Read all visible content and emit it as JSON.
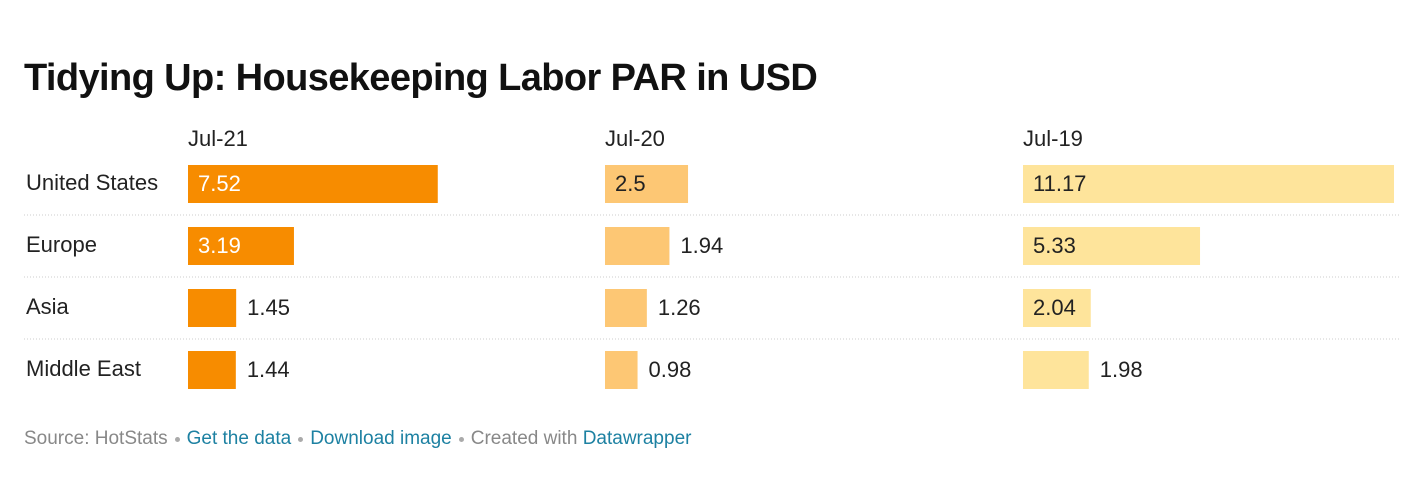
{
  "chart_data": {
    "type": "split-bar",
    "title": "Tidying Up: Housekeeping Labor PAR in USD",
    "categories": [
      "United States",
      "Europe",
      "Asia",
      "Middle East"
    ],
    "series": [
      {
        "name": "Jul-21",
        "color": "#f78c00",
        "values": [
          7.52,
          3.19,
          1.45,
          1.44
        ]
      },
      {
        "name": "Jul-20",
        "color": "#fdc774",
        "values": [
          2.5,
          1.94,
          1.26,
          0.98
        ]
      },
      {
        "name": "Jul-19",
        "color": "#fee49b",
        "values": [
          11.17,
          5.33,
          2.04,
          1.98
        ]
      }
    ]
  },
  "footer": {
    "source": "Source: HotStats",
    "get_data": "Get the data",
    "download": "Download image",
    "created": "Created with",
    "tool": "Datawrapper"
  }
}
